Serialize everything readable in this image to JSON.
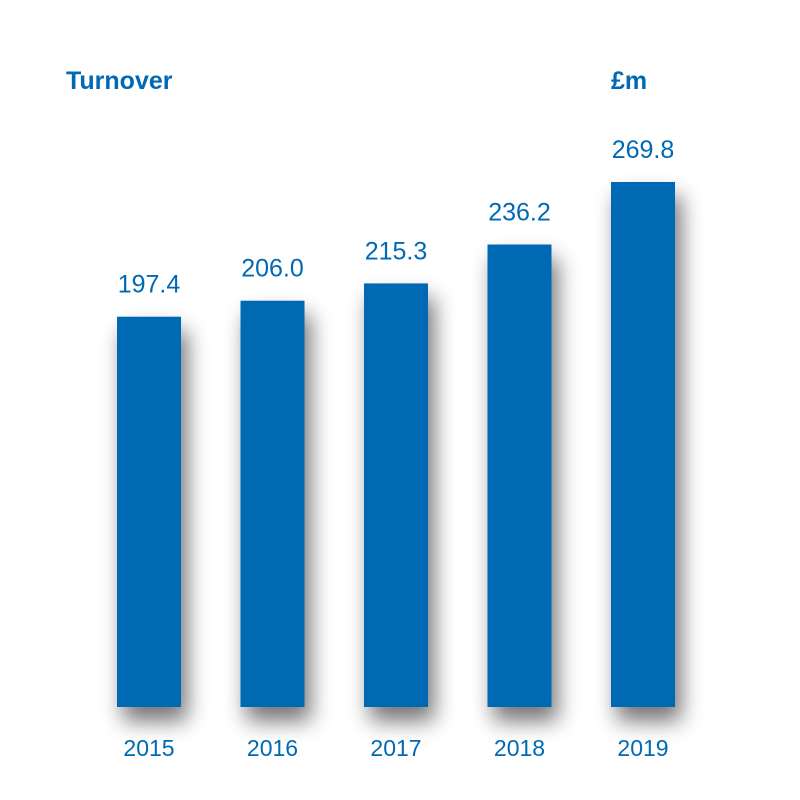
{
  "colors": {
    "bar": "#0069b4",
    "text": "#0069b4",
    "shadow": "#5a5a5a"
  },
  "chart_data": {
    "type": "bar",
    "title": "Turnover",
    "unit": "£m",
    "categories": [
      "2015",
      "2016",
      "2017",
      "2018",
      "2019"
    ],
    "values": [
      197.4,
      206.0,
      215.3,
      236.2,
      269.8
    ],
    "value_labels": [
      "197.4",
      "206.0",
      "215.3",
      "236.2",
      "269.8"
    ],
    "xlabel": "",
    "ylabel": "",
    "grid": false,
    "legend": "none"
  }
}
